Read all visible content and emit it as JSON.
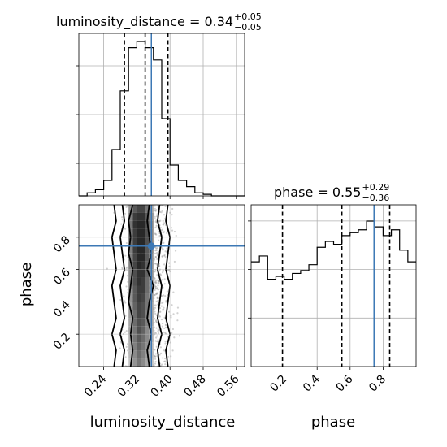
{
  "chart_data": {
    "type": "corner",
    "parameters": [
      "luminosity_distance",
      "phase"
    ],
    "truths": {
      "luminosity_distance": 0.355,
      "phase": 0.745
    },
    "titles": [
      {
        "param": "luminosity_distance",
        "prefix": "luminosity_distance = ",
        "median": "0.34",
        "upper": "+0.05",
        "lower": "−0.05"
      },
      {
        "param": "phase",
        "prefix": "phase = ",
        "median": "0.55",
        "upper": "+0.29",
        "lower": "−0.36"
      }
    ],
    "xlabels": [
      "luminosity_distance",
      "phase"
    ],
    "ylabels": [
      "",
      "phase"
    ],
    "luminosity_distance_ticks": [
      "0.24",
      "0.32",
      "0.40",
      "0.48",
      "0.56"
    ],
    "phase_ticks": [
      "0.2",
      "0.4",
      "0.6",
      "0.8"
    ],
    "grid": true,
    "luminosity_distance_range": [
      0.18,
      0.58
    ],
    "phase_range": [
      0.0,
      1.0
    ],
    "histograms": [
      {
        "param": "luminosity_distance",
        "bin_edges": [
          0.18,
          0.2,
          0.22,
          0.24,
          0.26,
          0.28,
          0.3,
          0.32,
          0.34,
          0.36,
          0.38,
          0.4,
          0.42,
          0.44,
          0.46,
          0.48,
          0.5,
          0.52,
          0.54,
          0.56,
          0.58
        ],
        "counts": [
          0,
          0.02,
          0.04,
          0.1,
          0.3,
          0.68,
          0.96,
          1.0,
          0.96,
          0.88,
          0.5,
          0.2,
          0.1,
          0.06,
          0.02,
          0.01,
          0,
          0,
          0,
          0
        ],
        "quantiles": [
          0.29,
          0.34,
          0.395
        ]
      },
      {
        "param": "phase",
        "bin_edges": [
          0.0,
          0.05,
          0.1,
          0.15,
          0.2,
          0.25,
          0.3,
          0.35,
          0.4,
          0.45,
          0.5,
          0.55,
          0.6,
          0.65,
          0.7,
          0.75,
          0.8,
          0.85,
          0.9,
          0.95,
          1.0
        ],
        "counts": [
          0.72,
          0.76,
          0.6,
          0.62,
          0.6,
          0.64,
          0.66,
          0.7,
          0.82,
          0.86,
          0.84,
          0.9,
          0.92,
          0.94,
          1.0,
          0.96,
          0.9,
          0.94,
          0.8,
          0.72
        ],
        "quantiles": [
          0.19,
          0.55,
          0.84
        ]
      }
    ],
    "joint": {
      "x_param": "luminosity_distance",
      "y_param": "phase",
      "x_bin_edges": [
        0.3,
        0.31,
        0.32,
        0.33,
        0.34,
        0.35,
        0.36
      ],
      "y_bin_edges": [
        0.0,
        0.05,
        0.1,
        0.15,
        0.2,
        0.25,
        0.3,
        0.35,
        0.4,
        0.45,
        0.5,
        0.55,
        0.6,
        0.65,
        0.7,
        0.75,
        0.8,
        0.85,
        0.9,
        0.95,
        1.0
      ],
      "density": [
        [
          0.2,
          0.45,
          0.6,
          0.5,
          0.35,
          0.2
        ],
        [
          0.25,
          0.5,
          0.65,
          0.55,
          0.4,
          0.25
        ],
        [
          0.3,
          0.55,
          0.7,
          0.6,
          0.45,
          0.25
        ],
        [
          0.3,
          0.6,
          0.75,
          0.65,
          0.5,
          0.3
        ],
        [
          0.35,
          0.6,
          0.8,
          0.7,
          0.5,
          0.3
        ],
        [
          0.35,
          0.65,
          0.8,
          0.75,
          0.55,
          0.35
        ],
        [
          0.4,
          0.65,
          0.85,
          0.8,
          0.55,
          0.35
        ],
        [
          0.4,
          0.7,
          0.85,
          0.8,
          0.6,
          0.35
        ],
        [
          0.45,
          0.75,
          0.9,
          0.85,
          0.6,
          0.4
        ],
        [
          0.45,
          0.75,
          0.9,
          0.9,
          0.65,
          0.4
        ],
        [
          0.5,
          0.8,
          0.95,
          0.9,
          0.65,
          0.4
        ],
        [
          0.5,
          0.8,
          0.95,
          0.95,
          0.7,
          0.45
        ],
        [
          0.55,
          0.85,
          1.0,
          0.95,
          0.7,
          0.45
        ],
        [
          0.55,
          0.85,
          1.0,
          1.0,
          0.75,
          0.45
        ],
        [
          0.55,
          0.9,
          1.0,
          1.0,
          0.75,
          0.5
        ],
        [
          0.6,
          0.9,
          1.0,
          1.0,
          0.8,
          0.5
        ],
        [
          0.6,
          0.9,
          1.0,
          1.0,
          0.8,
          0.5
        ],
        [
          0.6,
          0.95,
          1.0,
          1.0,
          0.8,
          0.5
        ],
        [
          0.55,
          0.9,
          0.95,
          0.95,
          0.75,
          0.45
        ],
        [
          0.45,
          0.75,
          0.85,
          0.85,
          0.6,
          0.35
        ]
      ],
      "contour_levels": [
        {
          "x_left": [
            0.305,
            0.31,
            0.305,
            0.31,
            0.3,
            0.305,
            0.31,
            0.3,
            0.305,
            0.3,
            0.31
          ],
          "x_right": [
            0.35,
            0.345,
            0.355,
            0.345,
            0.35,
            0.36,
            0.345,
            0.355,
            0.35,
            0.345,
            0.35
          ]
        },
        {
          "x_left": [
            0.285,
            0.29,
            0.28,
            0.29,
            0.285,
            0.28,
            0.29,
            0.285,
            0.28,
            0.29,
            0.285
          ],
          "x_right": [
            0.375,
            0.37,
            0.38,
            0.37,
            0.375,
            0.38,
            0.37,
            0.375,
            0.38,
            0.37,
            0.375
          ]
        },
        {
          "x_left": [
            0.265,
            0.27,
            0.26,
            0.27,
            0.265,
            0.26,
            0.27,
            0.265,
            0.26,
            0.27,
            0.265
          ],
          "x_right": [
            0.395,
            0.39,
            0.4,
            0.39,
            0.395,
            0.4,
            0.39,
            0.395,
            0.4,
            0.39,
            0.395
          ]
        }
      ],
      "contour_y": [
        0.0,
        0.1,
        0.2,
        0.3,
        0.4,
        0.5,
        0.6,
        0.7,
        0.8,
        0.9,
        1.0
      ],
      "scatter_x_range": [
        0.19,
        0.5
      ],
      "scatter_density_note": "grey sample points spread across full phase range"
    }
  }
}
